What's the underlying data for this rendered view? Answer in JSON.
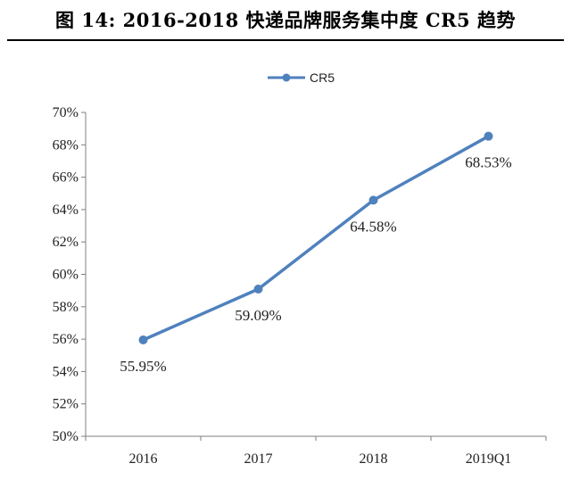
{
  "figure_title": "图 14:  2016-2018 快递品牌服务集中度 CR5 趋势",
  "colors": {
    "series": "#4f81bd",
    "axis": "#7f7f7f"
  },
  "chart_data": {
    "type": "line",
    "title": "",
    "xlabel": "",
    "ylabel": "",
    "categories": [
      "2016",
      "2017",
      "2018",
      "2019Q1"
    ],
    "series": [
      {
        "name": "CR5",
        "values": [
          55.95,
          59.09,
          64.58,
          68.53
        ],
        "labels": [
          "55.95%",
          "59.09%",
          "64.58%",
          "68.53%"
        ]
      }
    ],
    "ylim": [
      50,
      70
    ],
    "yticks": [
      "50%",
      "52%",
      "54%",
      "56%",
      "58%",
      "60%",
      "62%",
      "64%",
      "66%",
      "68%",
      "70%"
    ],
    "grid": false,
    "legend_position": "top-center"
  }
}
